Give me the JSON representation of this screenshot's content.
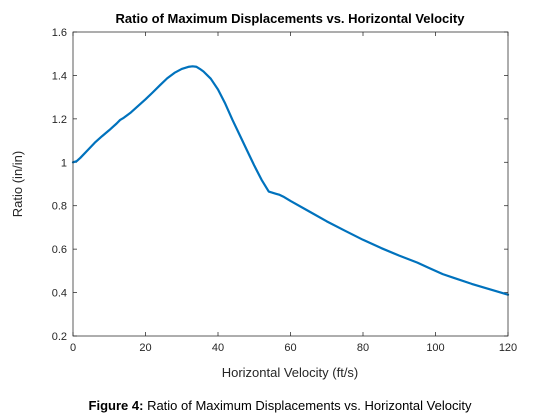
{
  "chart_data": {
    "type": "line",
    "title": "Ratio of Maximum Displacements vs. Horizontal Velocity",
    "xlabel": "Horizontal Velocity (ft/s)",
    "ylabel": "Ratio (in/in)",
    "xlim": [
      0,
      120
    ],
    "ylim": [
      0.2,
      1.6
    ],
    "xticks": [
      0,
      20,
      40,
      60,
      80,
      100,
      120
    ],
    "yticks": [
      0.2,
      0.4,
      0.6,
      0.8,
      1,
      1.2,
      1.4,
      1.6
    ],
    "xtick_labels": [
      "0",
      "20",
      "40",
      "60",
      "80",
      "100",
      "120"
    ],
    "ytick_labels": [
      "0.2",
      "0.4",
      "0.6",
      "0.8",
      "1",
      "1.2",
      "1.4",
      "1.6"
    ],
    "grid": false,
    "series": [
      {
        "color": "#0072BD",
        "x": [
          0,
          1,
          2,
          4,
          6,
          8,
          10,
          12,
          13,
          14,
          16,
          18,
          20,
          22,
          24,
          26,
          28,
          30,
          32,
          33,
          34,
          35,
          36,
          38,
          40,
          42,
          44,
          46,
          48,
          50,
          52,
          54,
          56,
          57,
          58,
          60,
          65,
          70,
          75,
          80,
          85,
          90,
          95,
          98,
          100,
          102,
          105,
          110,
          115,
          120
        ],
        "y": [
          1.0,
          1.005,
          1.02,
          1.055,
          1.09,
          1.12,
          1.148,
          1.178,
          1.195,
          1.205,
          1.23,
          1.26,
          1.29,
          1.322,
          1.355,
          1.387,
          1.412,
          1.43,
          1.44,
          1.442,
          1.44,
          1.43,
          1.418,
          1.385,
          1.335,
          1.27,
          1.195,
          1.125,
          1.055,
          0.985,
          0.92,
          0.865,
          0.855,
          0.85,
          0.842,
          0.822,
          0.775,
          0.728,
          0.685,
          0.643,
          0.605,
          0.57,
          0.538,
          0.515,
          0.5,
          0.485,
          0.468,
          0.44,
          0.415,
          0.39
        ]
      }
    ]
  },
  "caption": {
    "label": "Figure 4:",
    "text": "Ratio of Maximum Displacements vs. Horizontal Velocity"
  }
}
